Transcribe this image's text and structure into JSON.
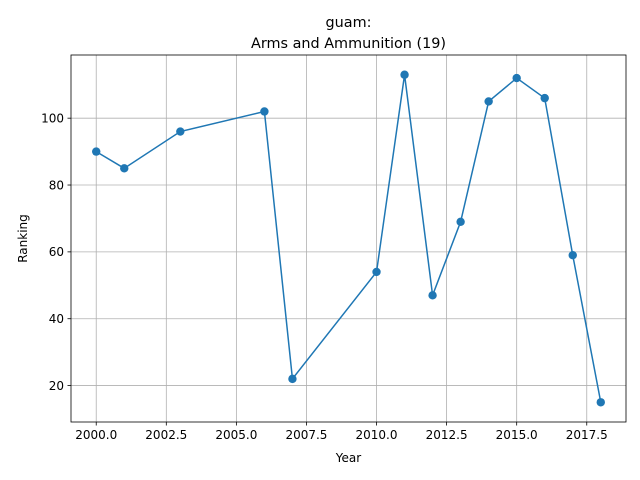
{
  "chart_data": {
    "type": "line",
    "title_line1": "guam:",
    "title_line2": "Arms and Ammunition (19)",
    "xlabel": "Year",
    "ylabel": "Ranking",
    "xlim": [
      1999.1,
      2018.9
    ],
    "ylim": [
      9.1,
      118.9
    ],
    "xticks": [
      2000.0,
      2002.5,
      2005.0,
      2007.5,
      2010.0,
      2012.5,
      2015.0,
      2017.5
    ],
    "xtick_labels": [
      "2000.0",
      "2002.5",
      "2005.0",
      "2007.5",
      "2010.0",
      "2012.5",
      "2015.0",
      "2017.5"
    ],
    "yticks": [
      20,
      40,
      60,
      80,
      100
    ],
    "ytick_labels": [
      "20",
      "40",
      "60",
      "80",
      "100"
    ],
    "grid": true,
    "series": [
      {
        "color": "#1f77b4",
        "marker": "circle",
        "x": [
          2000,
          2001,
          2003,
          2006,
          2007,
          2010,
          2011,
          2012,
          2013,
          2014,
          2015,
          2016,
          2017,
          2018
        ],
        "y": [
          90,
          85,
          96,
          102,
          22,
          54,
          113,
          47,
          69,
          105,
          112,
          106,
          59,
          15
        ]
      }
    ]
  }
}
